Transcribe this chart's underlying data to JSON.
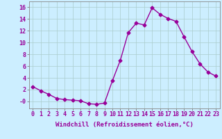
{
  "x": [
    0,
    1,
    2,
    3,
    4,
    5,
    6,
    7,
    8,
    9,
    10,
    11,
    12,
    13,
    14,
    15,
    16,
    17,
    18,
    19,
    20,
    21,
    22,
    23
  ],
  "y": [
    2.5,
    1.8,
    1.2,
    0.5,
    0.3,
    0.2,
    0.1,
    -0.4,
    -0.5,
    -0.3,
    3.5,
    7.0,
    11.7,
    13.3,
    13.0,
    15.9,
    14.8,
    14.1,
    13.6,
    11.0,
    8.5,
    6.4,
    5.0,
    4.3
  ],
  "line_color": "#990099",
  "marker": "D",
  "markersize": 2.5,
  "linewidth": 1.0,
  "xlabel": "Windchill (Refroidissement éolien,°C)",
  "xlabel_fontsize": 6.5,
  "xlabel_color": "#990099",
  "xtick_labels": [
    "0",
    "1",
    "2",
    "3",
    "4",
    "5",
    "6",
    "7",
    "8",
    "9",
    "10",
    "11",
    "12",
    "13",
    "14",
    "15",
    "16",
    "17",
    "18",
    "19",
    "20",
    "21",
    "22",
    "23"
  ],
  "ytick_values": [
    0,
    2,
    4,
    6,
    8,
    10,
    12,
    14,
    16
  ],
  "ytick_labels": [
    "-0",
    "2",
    "4",
    "6",
    "8",
    "10",
    "12",
    "14",
    "16"
  ],
  "ylim": [
    -1.2,
    17.0
  ],
  "xlim": [
    -0.5,
    23.5
  ],
  "bg_color": "#cceeff",
  "grid_color": "#aacccc",
  "tick_color": "#990099",
  "tick_fontsize": 6.0
}
